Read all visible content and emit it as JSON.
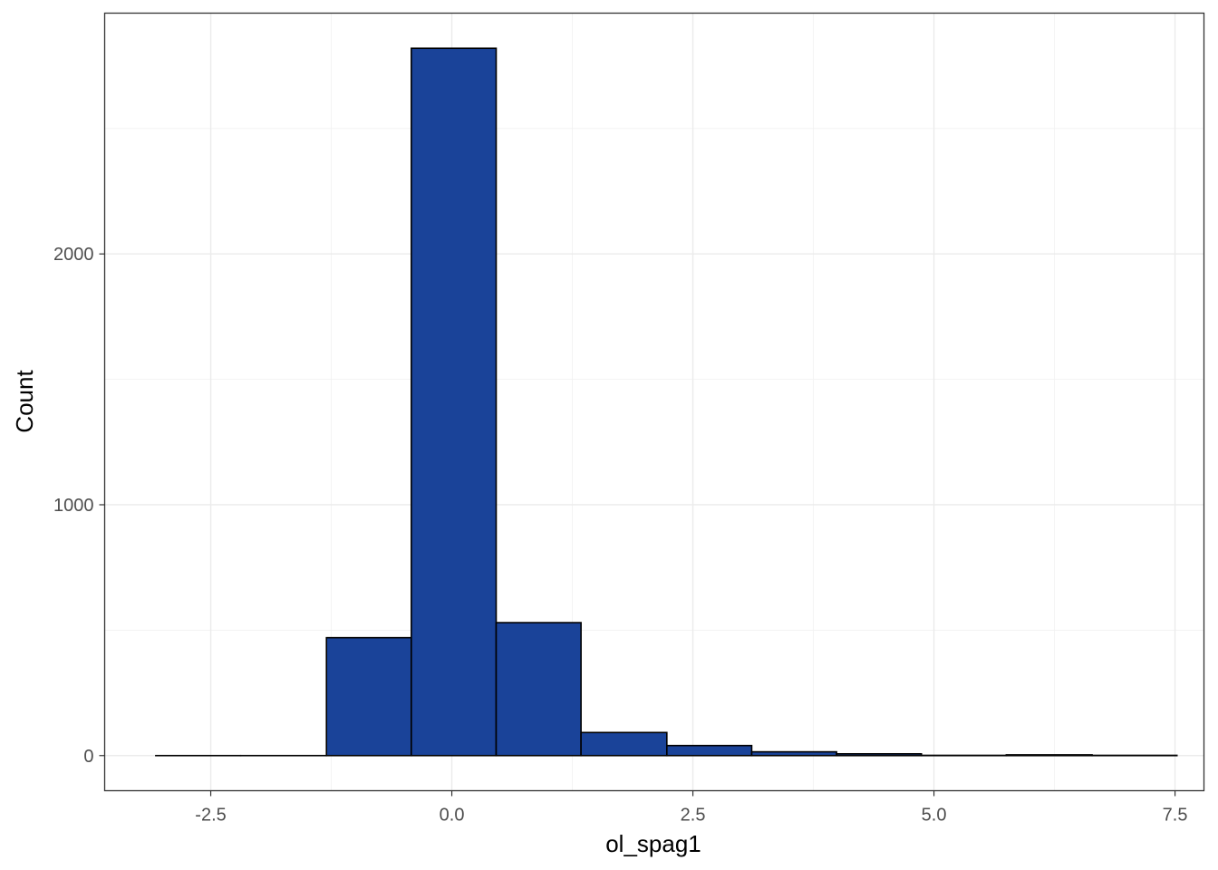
{
  "chart_data": {
    "type": "bar",
    "subtype": "histogram",
    "xlabel": "ol_spag1",
    "ylabel": "Count",
    "x_ticks": [
      -2.5,
      0.0,
      2.5,
      5.0,
      7.5
    ],
    "x_tick_labels": [
      "-2.5",
      "0.0",
      "2.5",
      "5.0",
      "7.5"
    ],
    "y_ticks": [
      0,
      1000,
      2000
    ],
    "y_tick_labels": [
      "0",
      "1000",
      "2000"
    ],
    "xlim": [
      -3.6,
      7.8
    ],
    "ylim": [
      -140,
      2960
    ],
    "grid": true,
    "theme": "bw",
    "bins": [
      {
        "x0": -3.07,
        "x1": -2.19,
        "count": 0
      },
      {
        "x0": -2.19,
        "x1": -1.3,
        "count": 0
      },
      {
        "x0": -1.3,
        "x1": -0.42,
        "count": 470
      },
      {
        "x0": -0.42,
        "x1": 0.46,
        "count": 2820
      },
      {
        "x0": 0.46,
        "x1": 1.34,
        "count": 530
      },
      {
        "x0": 1.34,
        "x1": 2.23,
        "count": 92
      },
      {
        "x0": 2.23,
        "x1": 3.11,
        "count": 40
      },
      {
        "x0": 3.11,
        "x1": 3.99,
        "count": 15
      },
      {
        "x0": 3.99,
        "x1": 4.87,
        "count": 7
      },
      {
        "x0": 4.87,
        "x1": 5.75,
        "count": 1
      },
      {
        "x0": 5.75,
        "x1": 6.64,
        "count": 3
      },
      {
        "x0": 6.64,
        "x1": 7.52,
        "count": 1
      }
    ],
    "colors": {
      "bar_fill": "#1a4399",
      "bar_stroke": "#000000"
    }
  }
}
